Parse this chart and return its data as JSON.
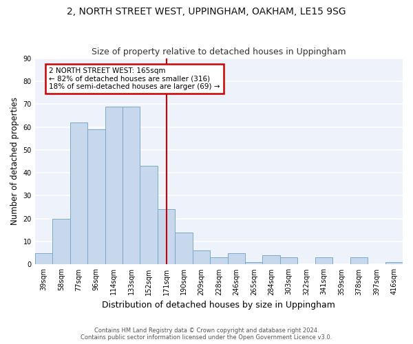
{
  "title": "2, NORTH STREET WEST, UPPINGHAM, OAKHAM, LE15 9SG",
  "subtitle": "Size of property relative to detached houses in Uppingham",
  "xlabel": "Distribution of detached houses by size in Uppingham",
  "ylabel": "Number of detached properties",
  "bar_labels": [
    "39sqm",
    "58sqm",
    "77sqm",
    "96sqm",
    "114sqm",
    "133sqm",
    "152sqm",
    "171sqm",
    "190sqm",
    "209sqm",
    "228sqm",
    "246sqm",
    "265sqm",
    "284sqm",
    "303sqm",
    "322sqm",
    "341sqm",
    "359sqm",
    "378sqm",
    "397sqm",
    "416sqm"
  ],
  "bar_values": [
    5,
    20,
    62,
    59,
    69,
    69,
    43,
    24,
    14,
    6,
    3,
    5,
    1,
    4,
    3,
    0,
    3,
    0,
    3,
    0,
    1
  ],
  "bar_color": "#c8d8ec",
  "bar_edge_color": "#7aaac8",
  "background_color": "#ffffff",
  "plot_bg_color": "#eef2fa",
  "grid_color": "#ffffff",
  "annotation_text_line1": "2 NORTH STREET WEST: 165sqm",
  "annotation_text_line2": "← 82% of detached houses are smaller (316)",
  "annotation_text_line3": "18% of semi-detached houses are larger (69) →",
  "annotation_box_color": "#ffffff",
  "annotation_box_edge_color": "#cc0000",
  "vline_color": "#cc0000",
  "vline_x": 7.0,
  "ylim": [
    0,
    90
  ],
  "yticks": [
    0,
    10,
    20,
    30,
    40,
    50,
    60,
    70,
    80,
    90
  ],
  "title_fontsize": 10,
  "subtitle_fontsize": 9,
  "tick_fontsize": 7,
  "ylabel_fontsize": 8.5,
  "xlabel_fontsize": 9,
  "annotation_fontsize": 7.5,
  "footer_line1": "Contains HM Land Registry data © Crown copyright and database right 2024.",
  "footer_line2": "Contains public sector information licensed under the Open Government Licence v3.0."
}
